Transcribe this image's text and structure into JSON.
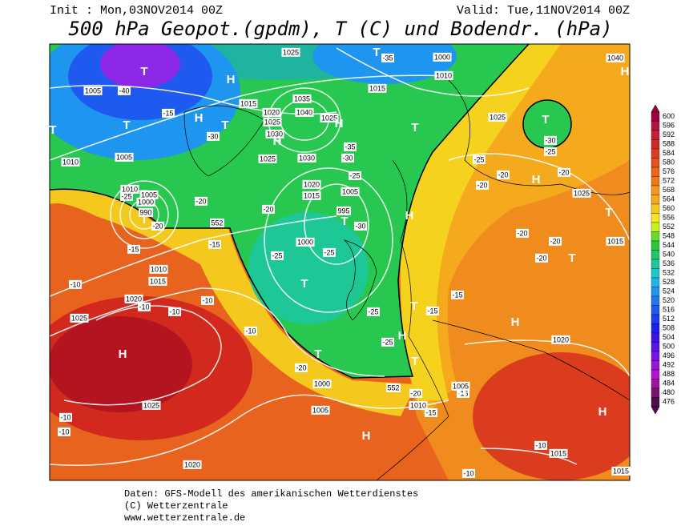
{
  "header": {
    "init": "Init : Mon,03NOV2014 00Z",
    "valid": "Valid: Tue,11NOV2014 00Z",
    "title": "500 hPa Geopot.(gpdm), T (C) und Bodendr. (hPa)"
  },
  "footer": [
    "Daten: GFS-Modell des amerikanischen Wetterdienstes",
    "(C) Wetterzentrale",
    "www.wetterzentrale.de"
  ],
  "colorbar": {
    "values": [
      600,
      596,
      592,
      588,
      584,
      580,
      576,
      572,
      568,
      564,
      560,
      556,
      552,
      548,
      544,
      540,
      536,
      532,
      528,
      524,
      520,
      516,
      512,
      508,
      504,
      500,
      496,
      492,
      488,
      484,
      480,
      476
    ],
    "colors": [
      "#a0003c",
      "#b4143c",
      "#c81e32",
      "#d22828",
      "#dc3c1e",
      "#e6501e",
      "#f06414",
      "#f07814",
      "#f5961e",
      "#f5aa1e",
      "#f5c81e",
      "#f5e61e",
      "#c8f01e",
      "#64dc28",
      "#28c83c",
      "#1ec864",
      "#1ec896",
      "#1ec8c8",
      "#1eb4e6",
      "#1e96f0",
      "#1e78f0",
      "#1e5af0",
      "#1e3cf0",
      "#1e1ef0",
      "#3c14e6",
      "#5a14e6",
      "#7814e6",
      "#9614dc",
      "#b414d2",
      "#a014a0",
      "#78146e",
      "#500a50"
    ]
  },
  "isobar_labels": [
    "1025",
    "1000",
    "1040",
    "1005",
    "1015",
    "1010",
    "1015",
    "1020",
    "1035",
    "1040",
    "1025",
    "1025",
    "1030",
    "1025",
    "1030",
    "1010",
    "1005",
    "1025",
    "1020",
    "1015",
    "1005",
    "995",
    "1010",
    "1005",
    "1000",
    "990",
    "1000",
    "1010",
    "1015",
    "1020",
    "1025",
    "1025",
    "1015",
    "1020",
    "1000",
    "1005",
    "1010",
    "1005",
    "1025",
    "1020",
    "1015",
    "1015"
  ],
  "temperature_labels": [
    "-40",
    "-35",
    "-15",
    "-30",
    "-35",
    "-30",
    "-25",
    "-25",
    "-20",
    "-20",
    "-25",
    "-20",
    "-20",
    "-30",
    "-25",
    "-25",
    "-20",
    "-15",
    "-15",
    "-10",
    "-10",
    "-10",
    "-10",
    "-10",
    "-20",
    "-25",
    "-25",
    "-15",
    "-15",
    "-20",
    "-15",
    "-15",
    "-20",
    "-20",
    "-20",
    "-20",
    "-30",
    "-25",
    "-10",
    "-10",
    "-10",
    "-10"
  ],
  "geopotential_labels": [
    "552",
    "552"
  ],
  "pressure_centers": [
    "T",
    "H",
    "T",
    "H",
    "T",
    "H",
    "H",
    "T",
    "T",
    "T",
    "H",
    "T",
    "H",
    "T",
    "T",
    "H",
    "T",
    "T",
    "T",
    "H",
    "T",
    "T",
    "H",
    "H",
    "H",
    "H",
    "H",
    "T"
  ]
}
